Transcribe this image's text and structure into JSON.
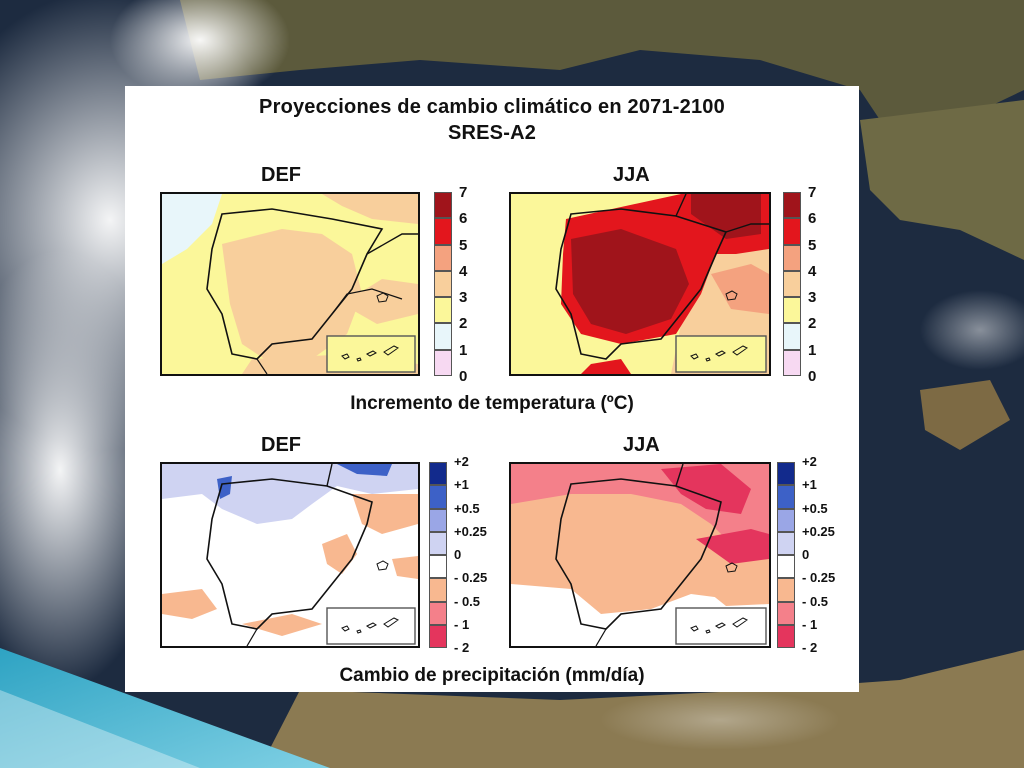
{
  "slide": {
    "title_line1": "Proyecciones de cambio climático en 2071-2100",
    "title_line2": "SRES-A2"
  },
  "temperature": {
    "caption": "Incremento de temperatura (ºC)",
    "seasons": [
      "DEF",
      "JJA"
    ],
    "legend": [
      {
        "label": "7",
        "color": "#a0141b"
      },
      {
        "label": "6",
        "color": "#e3161d"
      },
      {
        "label": "5",
        "color": "#f4a27f"
      },
      {
        "label": "4",
        "color": "#f8cf9c"
      },
      {
        "label": "3",
        "color": "#fbf79a"
      },
      {
        "label": "2",
        "color": "#e8f6fa"
      },
      {
        "label": "1",
        "color": "#f7d9f2"
      },
      {
        "label": "0",
        "color": ""
      }
    ]
  },
  "precipitation": {
    "caption": "Cambio de precipitación (mm/día)",
    "seasons": [
      "DEF",
      "JJA"
    ],
    "legend": [
      {
        "label": "+2",
        "color": "#122a8c"
      },
      {
        "label": "+1",
        "color": "#3d61c7"
      },
      {
        "label": "+0.5",
        "color": "#9aa6e6"
      },
      {
        "label": "+0.25",
        "color": "#cfd3f2"
      },
      {
        "label": "0",
        "color": "#ffffff"
      },
      {
        "label": "- 0.25",
        "color": "#f8b890"
      },
      {
        "label": "- 0.5",
        "color": "#f4808a"
      },
      {
        "label": "- 1",
        "color": "#e4355d"
      },
      {
        "label": "- 2",
        "color": ""
      }
    ]
  }
}
